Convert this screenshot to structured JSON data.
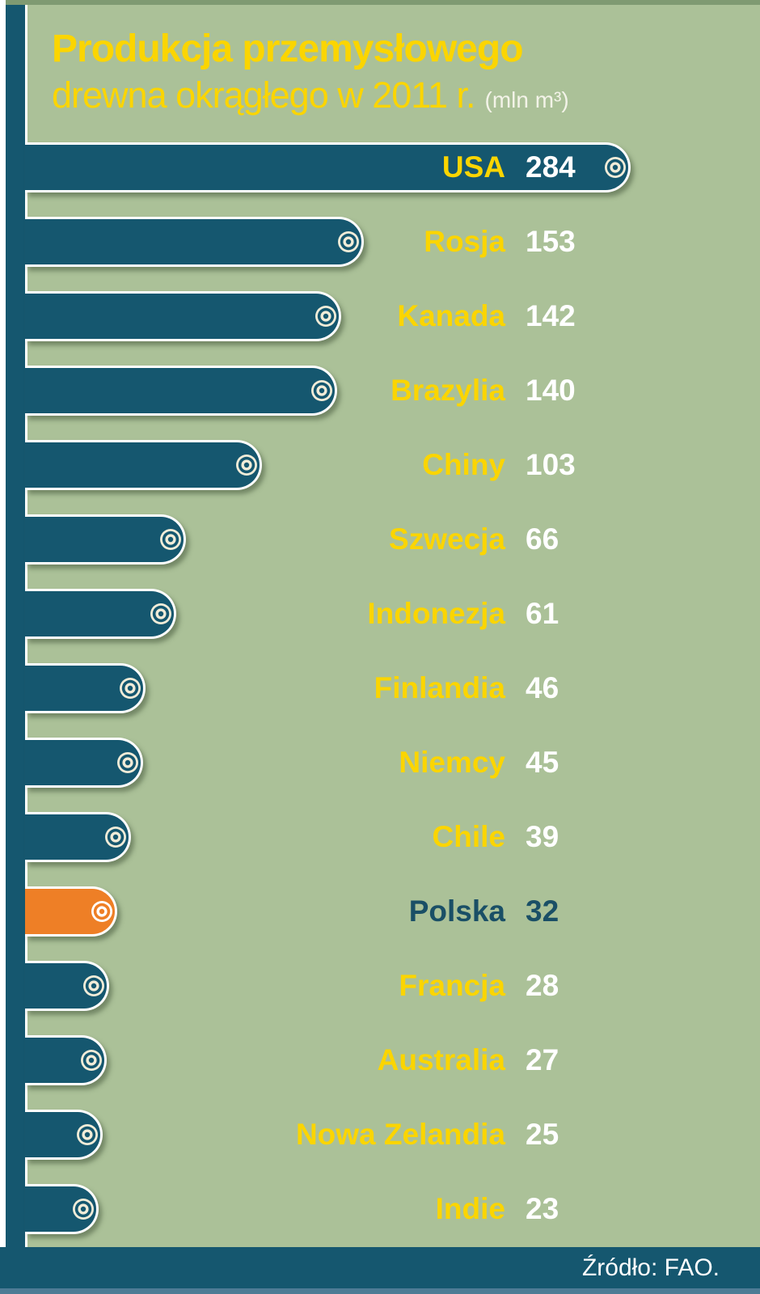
{
  "title": {
    "line1": "Produkcja przemysłowego",
    "line2": "drewna okrągłego w 2011 r.",
    "unit": "(mln m³)"
  },
  "footer": {
    "source": "Źródło: FAO."
  },
  "colors": {
    "background_green": "#abc198",
    "top_edge_green": "#7f9a72",
    "bar_teal": "#15576f",
    "highlight_orange": "#ee7f26",
    "country_label_yellow": "#fbd500",
    "value_label_white": "#ffffff",
    "highlight_text_teal": "#1a4f66",
    "log_ring_cream": "#f1ecd8",
    "log_ring_white": "#ffffff",
    "footer_teal": "#15576f",
    "bottom_edge_blue": "#4e7b95"
  },
  "chart_data": {
    "type": "bar",
    "orientation": "horizontal",
    "title": "Produkcja przemysłowego drewna okrągłego w 2011 r.",
    "unit": "mln m³",
    "source": "FAO",
    "categories": [
      "USA",
      "Rosja",
      "Kanada",
      "Brazylia",
      "Chiny",
      "Szwecja",
      "Indonezja",
      "Finlandia",
      "Niemcy",
      "Chile",
      "Polska",
      "Francja",
      "Australia",
      "Nowa Zelandia",
      "Indie"
    ],
    "values": [
      284,
      153,
      142,
      140,
      103,
      66,
      61,
      46,
      45,
      39,
      32,
      28,
      27,
      25,
      23
    ],
    "highlight_category": "Polska",
    "value_range": [
      0,
      284
    ],
    "grid": false,
    "legend": false
  }
}
